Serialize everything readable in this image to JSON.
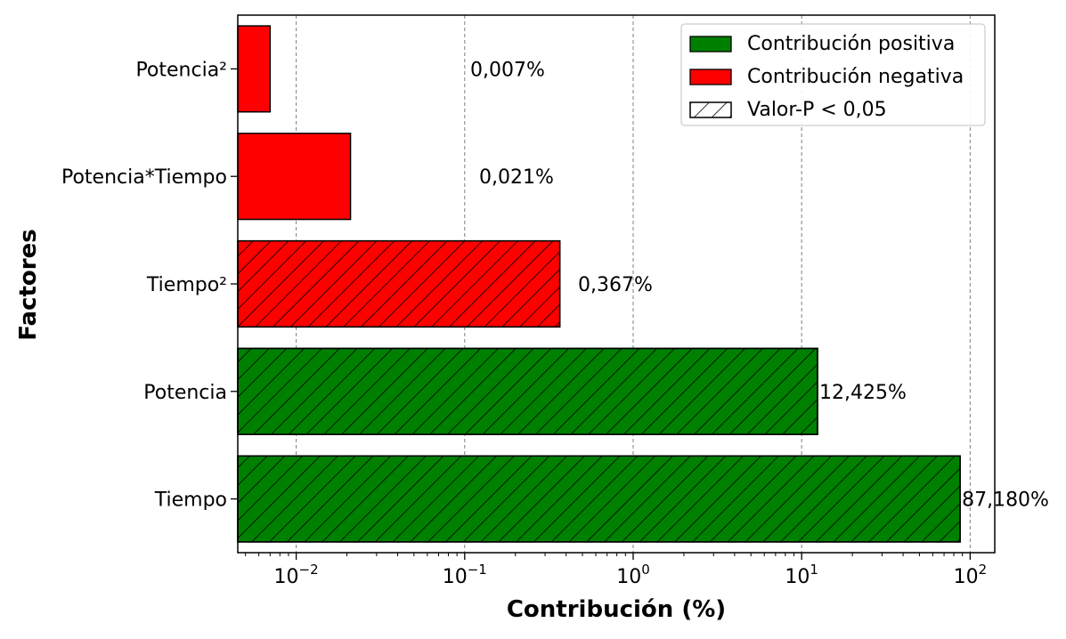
{
  "chart_data": {
    "type": "bar",
    "orientation": "horizontal",
    "x_scale": "log",
    "xlim": [
      0.0045,
      140
    ],
    "xlabel": "Contribución (%)",
    "ylabel": "Factores",
    "grid": "vertical dashed at decades",
    "legend_position": "top-right",
    "x_ticks": [
      {
        "base": "10",
        "exp": "−2",
        "value": 0.01
      },
      {
        "base": "10",
        "exp": "−1",
        "value": 0.1
      },
      {
        "base": "10",
        "exp": "0",
        "value": 1
      },
      {
        "base": "10",
        "exp": "1",
        "value": 10
      },
      {
        "base": "10",
        "exp": "2",
        "value": 100
      }
    ],
    "bars": [
      {
        "category": "Potencia²",
        "value": 0.007,
        "label": "0,007%",
        "sign": "negative",
        "significant": false
      },
      {
        "category": "Potencia*Tiempo",
        "value": 0.021,
        "label": "0,021%",
        "sign": "negative",
        "significant": false
      },
      {
        "category": "Tiempo²",
        "value": 0.367,
        "label": "0,367%",
        "sign": "negative",
        "significant": true
      },
      {
        "category": "Potencia",
        "value": 12.425,
        "label": "12,425%",
        "sign": "positive",
        "significant": true
      },
      {
        "category": "Tiempo",
        "value": 87.18,
        "label": "87,180%",
        "sign": "positive",
        "significant": true
      }
    ],
    "colors": {
      "positive": "#008000",
      "negative": "#ff0000",
      "edge": "#000000"
    },
    "legend": [
      {
        "label": "Contribución positiva",
        "kind": "positive"
      },
      {
        "label": "Contribución negativa",
        "kind": "negative"
      },
      {
        "label": "Valor-P < 0,05",
        "kind": "hatch"
      }
    ]
  }
}
